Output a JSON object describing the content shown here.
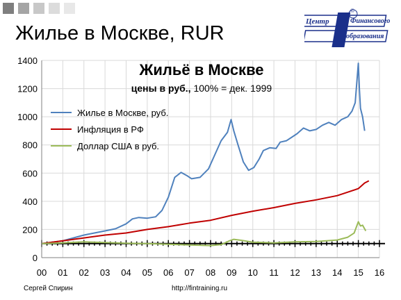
{
  "slide": {
    "title": "Жилье в Москве, RUR",
    "author": "Сергей Спирин",
    "url": "http://fintraining.ru"
  },
  "logo": {
    "line1": "Центр",
    "line2": "Финансового",
    "line3": "образования",
    "copyright": "©"
  },
  "chart_data": {
    "type": "line",
    "title": "Жильё в Москве",
    "subtitle_bold": "цены в руб.,",
    "subtitle_rest": " 100% = дек. 1999",
    "xlabel": "",
    "ylabel": "",
    "xlim": [
      0,
      16
    ],
    "ylim": [
      0,
      1400
    ],
    "x_ticks": [
      "00",
      "01",
      "02",
      "03",
      "04",
      "05",
      "06",
      "07",
      "08",
      "09",
      "10",
      "11",
      "12",
      "13",
      "14",
      "15",
      "16"
    ],
    "y_ticks": [
      0,
      200,
      400,
      600,
      800,
      1000,
      1200,
      1400
    ],
    "grid": true,
    "legend_position": "top-left",
    "reference_line": 100,
    "colors": {
      "housing": "#4f81bd",
      "inflation": "#c00000",
      "usd": "#9bbb59",
      "reference": "#000000"
    },
    "series": [
      {
        "name": "Жилье в Москве, руб.",
        "color": "#4f81bd",
        "x": [
          0,
          0.5,
          1,
          1.5,
          2,
          2.5,
          3,
          3.5,
          4,
          4.3,
          4.6,
          5,
          5.4,
          5.7,
          6,
          6.3,
          6.6,
          6.9,
          7.1,
          7.5,
          7.9,
          8.2,
          8.5,
          8.8,
          8.97,
          9.1,
          9.3,
          9.55,
          9.8,
          10.05,
          10.3,
          10.5,
          10.8,
          11.1,
          11.3,
          11.6,
          11.9,
          12.1,
          12.4,
          12.7,
          13,
          13.3,
          13.6,
          13.9,
          14.2,
          14.5,
          14.7,
          14.85,
          15.0,
          15.05,
          15.1,
          15.2,
          15.3
        ],
        "y": [
          100,
          110,
          120,
          140,
          160,
          175,
          190,
          205,
          240,
          275,
          285,
          280,
          290,
          335,
          430,
          570,
          605,
          580,
          560,
          570,
          630,
          730,
          830,
          890,
          980,
          900,
          800,
          680,
          620,
          640,
          700,
          760,
          780,
          775,
          820,
          830,
          860,
          880,
          920,
          900,
          910,
          940,
          960,
          940,
          980,
          1000,
          1040,
          1100,
          1380,
          1200,
          1060,
          1000,
          900
        ]
      },
      {
        "name": "Инфляция в РФ",
        "color": "#c00000",
        "x": [
          0,
          1,
          2,
          3,
          4,
          5,
          6,
          7,
          8,
          9,
          10,
          11,
          12,
          13,
          14,
          14.5,
          15,
          15.3,
          15.5
        ],
        "y": [
          100,
          120,
          140,
          160,
          175,
          200,
          220,
          245,
          265,
          300,
          330,
          355,
          385,
          410,
          440,
          465,
          490,
          530,
          545
        ]
      },
      {
        "name": "Доллар США в руб.",
        "color": "#9bbb59",
        "x": [
          0,
          1,
          2,
          3,
          4,
          5,
          6,
          7,
          8,
          8.5,
          8.9,
          9.1,
          9.5,
          10,
          11,
          12,
          13,
          14,
          14.5,
          14.8,
          15.0,
          15.1,
          15.2,
          15.35
        ],
        "y": [
          100,
          105,
          112,
          107,
          102,
          100,
          95,
          90,
          86,
          92,
          120,
          130,
          122,
          110,
          105,
          112,
          115,
          125,
          145,
          175,
          255,
          225,
          230,
          190
        ]
      }
    ]
  }
}
